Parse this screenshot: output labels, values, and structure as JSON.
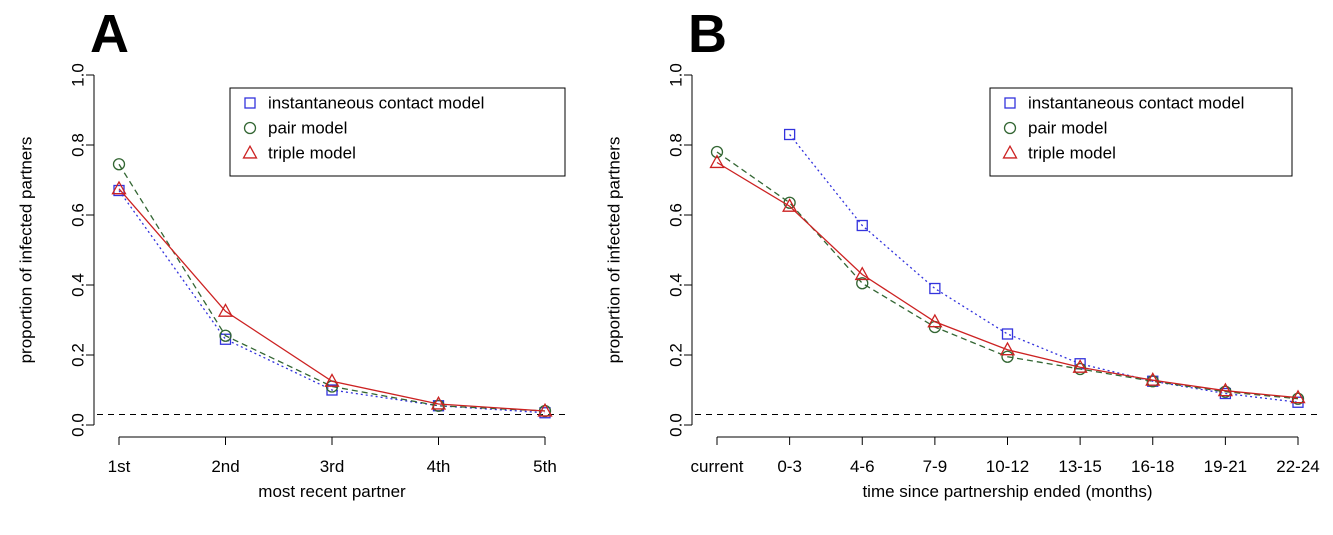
{
  "colors": {
    "icm": "#3333dd",
    "pair": "#336633",
    "triple": "#cc2222",
    "axis": "#000000"
  },
  "chart_data": [
    {
      "type": "line",
      "panel": "A",
      "xlabel": "most recent partner",
      "ylabel": "proportion of infected partners",
      "categories": [
        "1st",
        "2nd",
        "3rd",
        "4th",
        "5th"
      ],
      "ylim": [
        0,
        1
      ],
      "yticks": [
        "0.0",
        "0.2",
        "0.4",
        "0.6",
        "0.8",
        "1.0"
      ],
      "reference_line": 0.03,
      "legend_position": "top-right",
      "series": [
        {
          "name": "instantaneous contact model",
          "key": "icm",
          "marker": "square",
          "line": "dotted",
          "values": [
            0.67,
            0.245,
            0.1,
            0.055,
            0.035
          ]
        },
        {
          "name": "pair model",
          "key": "pair",
          "marker": "circle",
          "line": "dashed",
          "values": [
            0.745,
            0.255,
            0.11,
            0.055,
            0.04
          ]
        },
        {
          "name": "triple model",
          "key": "triple",
          "marker": "triangle",
          "line": "solid",
          "values": [
            0.675,
            0.325,
            0.125,
            0.06,
            0.04
          ]
        }
      ]
    },
    {
      "type": "line",
      "panel": "B",
      "xlabel": "time since partnership ended (months)",
      "ylabel": "proportion of infected partners",
      "categories": [
        "current",
        "0-3",
        "4-6",
        "7-9",
        "10-12",
        "13-15",
        "16-18",
        "19-21",
        "22-24"
      ],
      "ylim": [
        0,
        1
      ],
      "yticks": [
        "0.0",
        "0.2",
        "0.4",
        "0.6",
        "0.8",
        "1.0"
      ],
      "reference_line": 0.03,
      "legend_position": "top-right",
      "series": [
        {
          "name": "instantaneous contact model",
          "key": "icm",
          "marker": "square",
          "line": "dotted",
          "values": [
            null,
            0.83,
            0.57,
            0.39,
            0.26,
            0.175,
            0.125,
            0.09,
            0.065
          ]
        },
        {
          "name": "pair model",
          "key": "pair",
          "marker": "circle",
          "line": "dashed",
          "values": [
            0.78,
            0.635,
            0.405,
            0.28,
            0.195,
            0.16,
            0.125,
            0.095,
            0.075
          ]
        },
        {
          "name": "triple model",
          "key": "triple",
          "marker": "triangle",
          "line": "solid",
          "values": [
            0.75,
            0.625,
            0.43,
            0.295,
            0.215,
            0.165,
            0.128,
            0.098,
            0.078
          ]
        }
      ]
    }
  ]
}
